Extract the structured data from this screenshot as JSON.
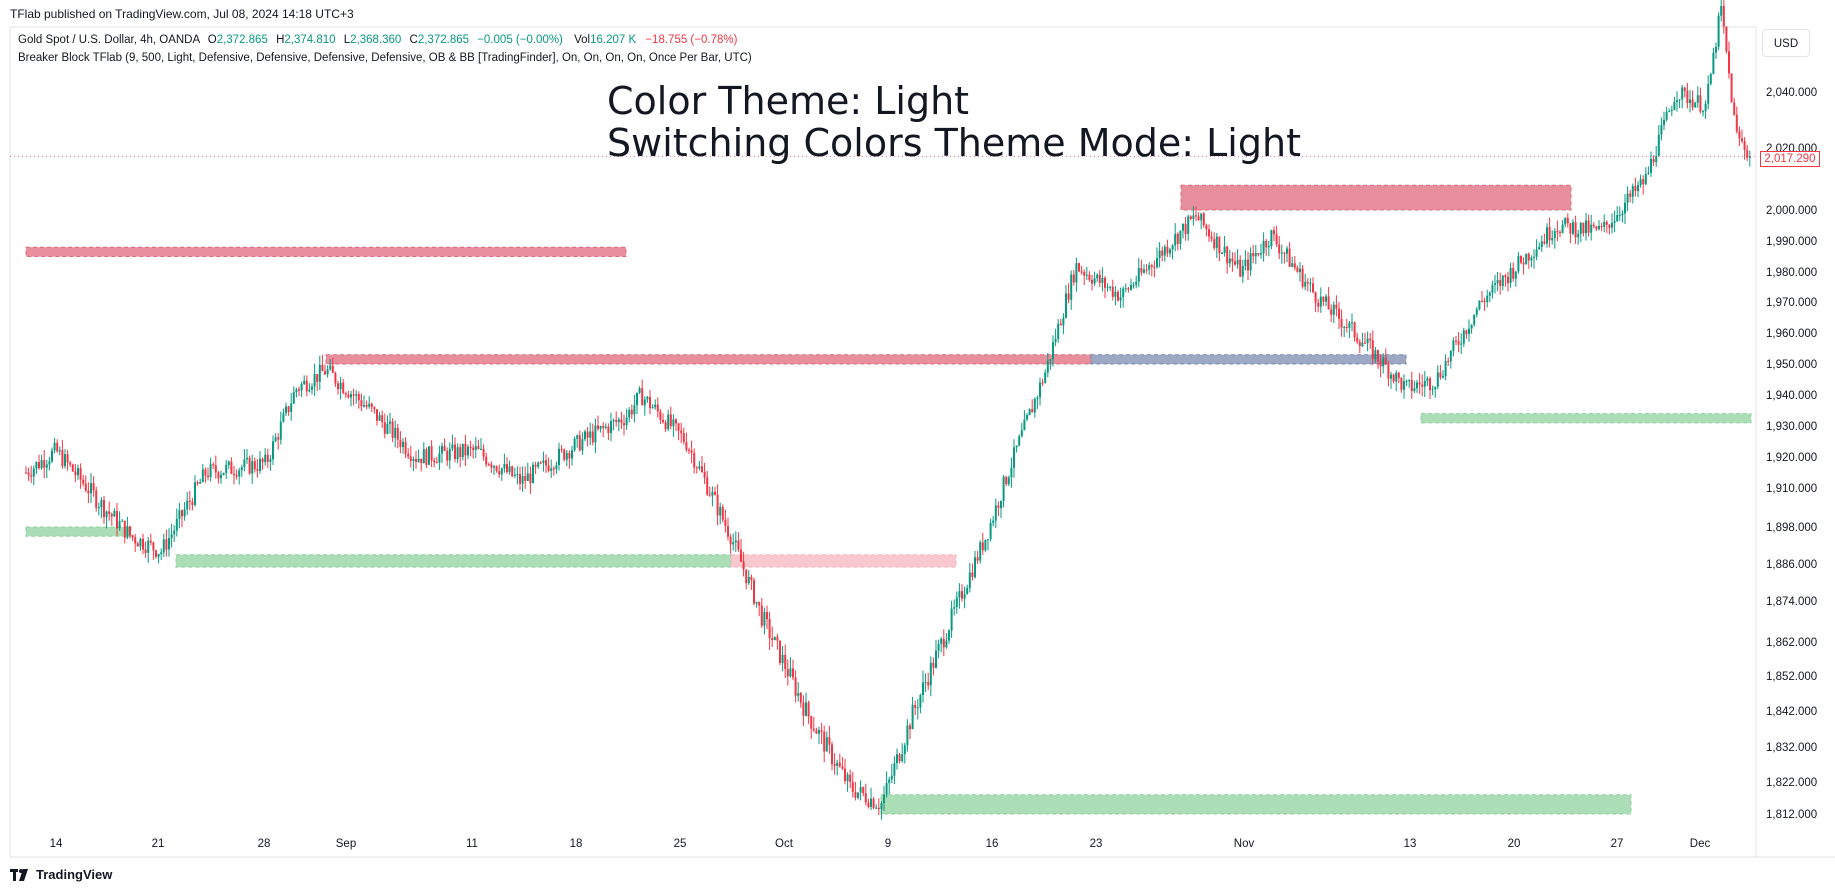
{
  "header": {
    "published": "TFlab published on TradingView.com, Jul 08, 2024 14:18 UTC+3",
    "symbol": "Gold Spot / U.S. Dollar, 4h, OANDA",
    "o_label": "O",
    "o_value": "2,372.865",
    "h_label": "H",
    "h_value": "2,374.810",
    "l_label": "L",
    "l_value": "2,368.360",
    "c_label": "C",
    "c_value": "2,372.865",
    "change": "−0.005 (−0.00%)",
    "vol_label": "Vol",
    "vol_value": "16.207 K",
    "vol_change": "−18.755 (−0.78%)",
    "indicator": "Breaker Block TFlab (9, 500, Light, Defensive, Defensive, Defensive, Defensive, OB & BB [TradingFinder], On, On, On, On, Once Per Bar, UTC)"
  },
  "overlay": {
    "line1": "Color Theme: Light",
    "line2": "Switching Colors Theme Mode: Light"
  },
  "currency": "USD",
  "last_price": "2,017.290",
  "footer": {
    "brand": "TradingView"
  },
  "colors": {
    "up": "#089981",
    "down": "#f23645",
    "zone_red": "#e06a7e",
    "zone_green": "#8fd19e",
    "zone_blue": "#7b8bb0",
    "zone_pink": "#f5b5bd"
  },
  "chart_data": {
    "type": "candlestick",
    "y_axis_ticks": [
      "2,040.000",
      "2,020.000",
      "2,000.000",
      "1,990.000",
      "1,980.000",
      "1,970.000",
      "1,960.000",
      "1,950.000",
      "1,940.000",
      "1,930.000",
      "1,920.000",
      "1,910.000",
      "1,898.000",
      "1,886.000",
      "1,874.000",
      "1,862.000",
      "1,852.000",
      "1,842.000",
      "1,832.000",
      "1,822.000",
      "1,812.000"
    ],
    "x_axis_ticks": [
      "14",
      "21",
      "28",
      "Sep",
      "11",
      "18",
      "25",
      "Oct",
      "9",
      "16",
      "23",
      "Nov",
      "13",
      "20",
      "27",
      "Dec"
    ],
    "ylim": [
      1806,
      2050
    ],
    "trend_path": [
      [
        "Aug 12",
        1915
      ],
      [
        "Aug 14",
        1922
      ],
      [
        "Aug 17",
        1905
      ],
      [
        "Aug 19",
        1895
      ],
      [
        "Aug 21",
        1890
      ],
      [
        "Aug 24",
        1915
      ],
      [
        "Aug 28",
        1918
      ],
      [
        "Aug 30",
        1942
      ],
      [
        "Sep 1",
        1948
      ],
      [
        "Sep 4",
        1935
      ],
      [
        "Sep 7",
        1920
      ],
      [
        "Sep 11",
        1922
      ],
      [
        "Sep 14",
        1912
      ],
      [
        "Sep 18",
        1925
      ],
      [
        "Sep 21",
        1933
      ],
      [
        "Sep 22",
        1940
      ],
      [
        "Sep 25",
        1925
      ],
      [
        "Sep 28",
        1895
      ],
      [
        "Sep 30",
        1870
      ],
      [
        "Oct 3",
        1842
      ],
      [
        "Oct 6",
        1820
      ],
      [
        "Oct 8",
        1815
      ],
      [
        "Oct 10",
        1840
      ],
      [
        "Oct 13",
        1872
      ],
      [
        "Oct 15",
        1895
      ],
      [
        "Oct 17",
        1922
      ],
      [
        "Oct 19",
        1948
      ],
      [
        "Oct 21",
        1982
      ],
      [
        "Oct 24",
        1972
      ],
      [
        "Oct 27",
        1988
      ],
      [
        "Oct 29",
        1998
      ],
      [
        "Nov 1",
        1980
      ],
      [
        "Nov 3",
        1992
      ],
      [
        "Nov 6",
        1972
      ],
      [
        "Nov 9",
        1958
      ],
      [
        "Nov 12",
        1942
      ],
      [
        "Nov 14",
        1945
      ],
      [
        "Nov 17",
        1970
      ],
      [
        "Nov 20",
        1985
      ],
      [
        "Nov 22",
        1995
      ],
      [
        "Nov 25",
        1993
      ],
      [
        "Nov 28",
        2010
      ],
      [
        "Nov 30",
        2040
      ],
      [
        "Dec 2",
        2035
      ],
      [
        "Dec 3",
        2070
      ],
      [
        "Dec 4",
        2025
      ],
      [
        "Dec 5",
        2017
      ]
    ],
    "zones": [
      {
        "kind": "supply",
        "from": "Aug 12",
        "to": "Sep 21",
        "low": 1985,
        "high": 1988
      },
      {
        "kind": "supply",
        "from": "Sep 1",
        "to": "Oct 22",
        "low": 1950,
        "high": 1953
      },
      {
        "kind": "breaker",
        "from": "Oct 22",
        "to": "Nov 12",
        "low": 1950,
        "high": 1953
      },
      {
        "kind": "supply",
        "from": "Oct 28",
        "to": "Nov 23",
        "low": 2000,
        "high": 2008
      },
      {
        "kind": "demand",
        "from": "Nov 13",
        "to": "Dec 5",
        "low": 1931,
        "high": 1934
      },
      {
        "kind": "demand",
        "from": "Aug 12",
        "to": "Aug 19",
        "low": 1895,
        "high": 1898
      },
      {
        "kind": "demand",
        "from": "Aug 22",
        "to": "Sep 28",
        "low": 1885,
        "high": 1889
      },
      {
        "kind": "breaker",
        "from": "Sep 28",
        "to": "Oct 13",
        "low": 1885,
        "high": 1889
      },
      {
        "kind": "demand",
        "from": "Oct 8",
        "to": "Nov 27",
        "low": 1812,
        "high": 1818
      }
    ]
  }
}
